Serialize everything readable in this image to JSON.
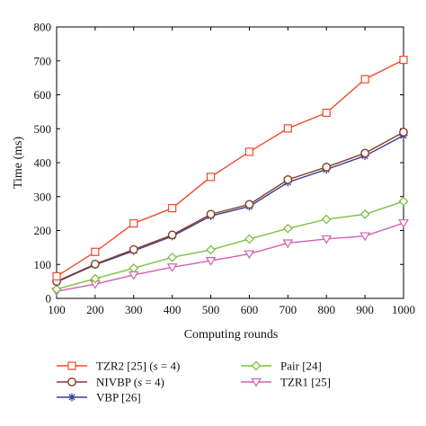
{
  "chart_data": {
    "type": "line",
    "title": "",
    "xlabel": "Computing rounds",
    "ylabel": "Time (ms)",
    "x": [
      100,
      200,
      300,
      400,
      500,
      600,
      700,
      800,
      900,
      1000
    ],
    "xlim": [
      100,
      1000
    ],
    "ylim": [
      0,
      800
    ],
    "xticks": [
      "100",
      "200",
      "300",
      "400",
      "500",
      "600",
      "700",
      "800",
      "900",
      "1000"
    ],
    "yticks": [
      "0",
      "100",
      "200",
      "300",
      "400",
      "500",
      "600",
      "700",
      "800"
    ],
    "grid": false,
    "legend_position": "below",
    "series": [
      {
        "name": "TZR2 [25] (s = 4)",
        "legend_parts": [
          "TZR2 [25] (",
          "s",
          " = 4)"
        ],
        "color": "#f04a2a",
        "marker": "square",
        "values": [
          65,
          137,
          221,
          266,
          358,
          432,
          501,
          547,
          646,
          703
        ]
      },
      {
        "name": "NIVBP (s = 4)",
        "legend_parts": [
          "NIVBP (",
          "s",
          " = 4)"
        ],
        "color": "#8b3a22",
        "marker": "circle",
        "values": [
          50,
          101,
          144,
          187,
          248,
          277,
          350,
          387,
          428,
          490
        ]
      },
      {
        "name": "VBP [26]",
        "legend_parts": [
          "VBP [26]",
          "",
          ""
        ],
        "color": "#3b3f8f",
        "marker": "star",
        "values": [
          48,
          99,
          140,
          183,
          243,
          271,
          342,
          380,
          420,
          480
        ]
      },
      {
        "name": "Pair [24]",
        "legend_parts": [
          "Pair [24]",
          "",
          ""
        ],
        "color": "#7bc142",
        "marker": "diamond",
        "values": [
          27,
          58,
          89,
          121,
          143,
          175,
          206,
          233,
          248,
          286
        ]
      },
      {
        "name": "TZR1 [25]",
        "legend_parts": [
          "TZR1 [25]",
          "",
          ""
        ],
        "color": "#d25fb5",
        "marker": "triangle-down",
        "values": [
          21,
          42,
          69,
          92,
          111,
          131,
          163,
          175,
          184,
          222
        ]
      }
    ]
  }
}
